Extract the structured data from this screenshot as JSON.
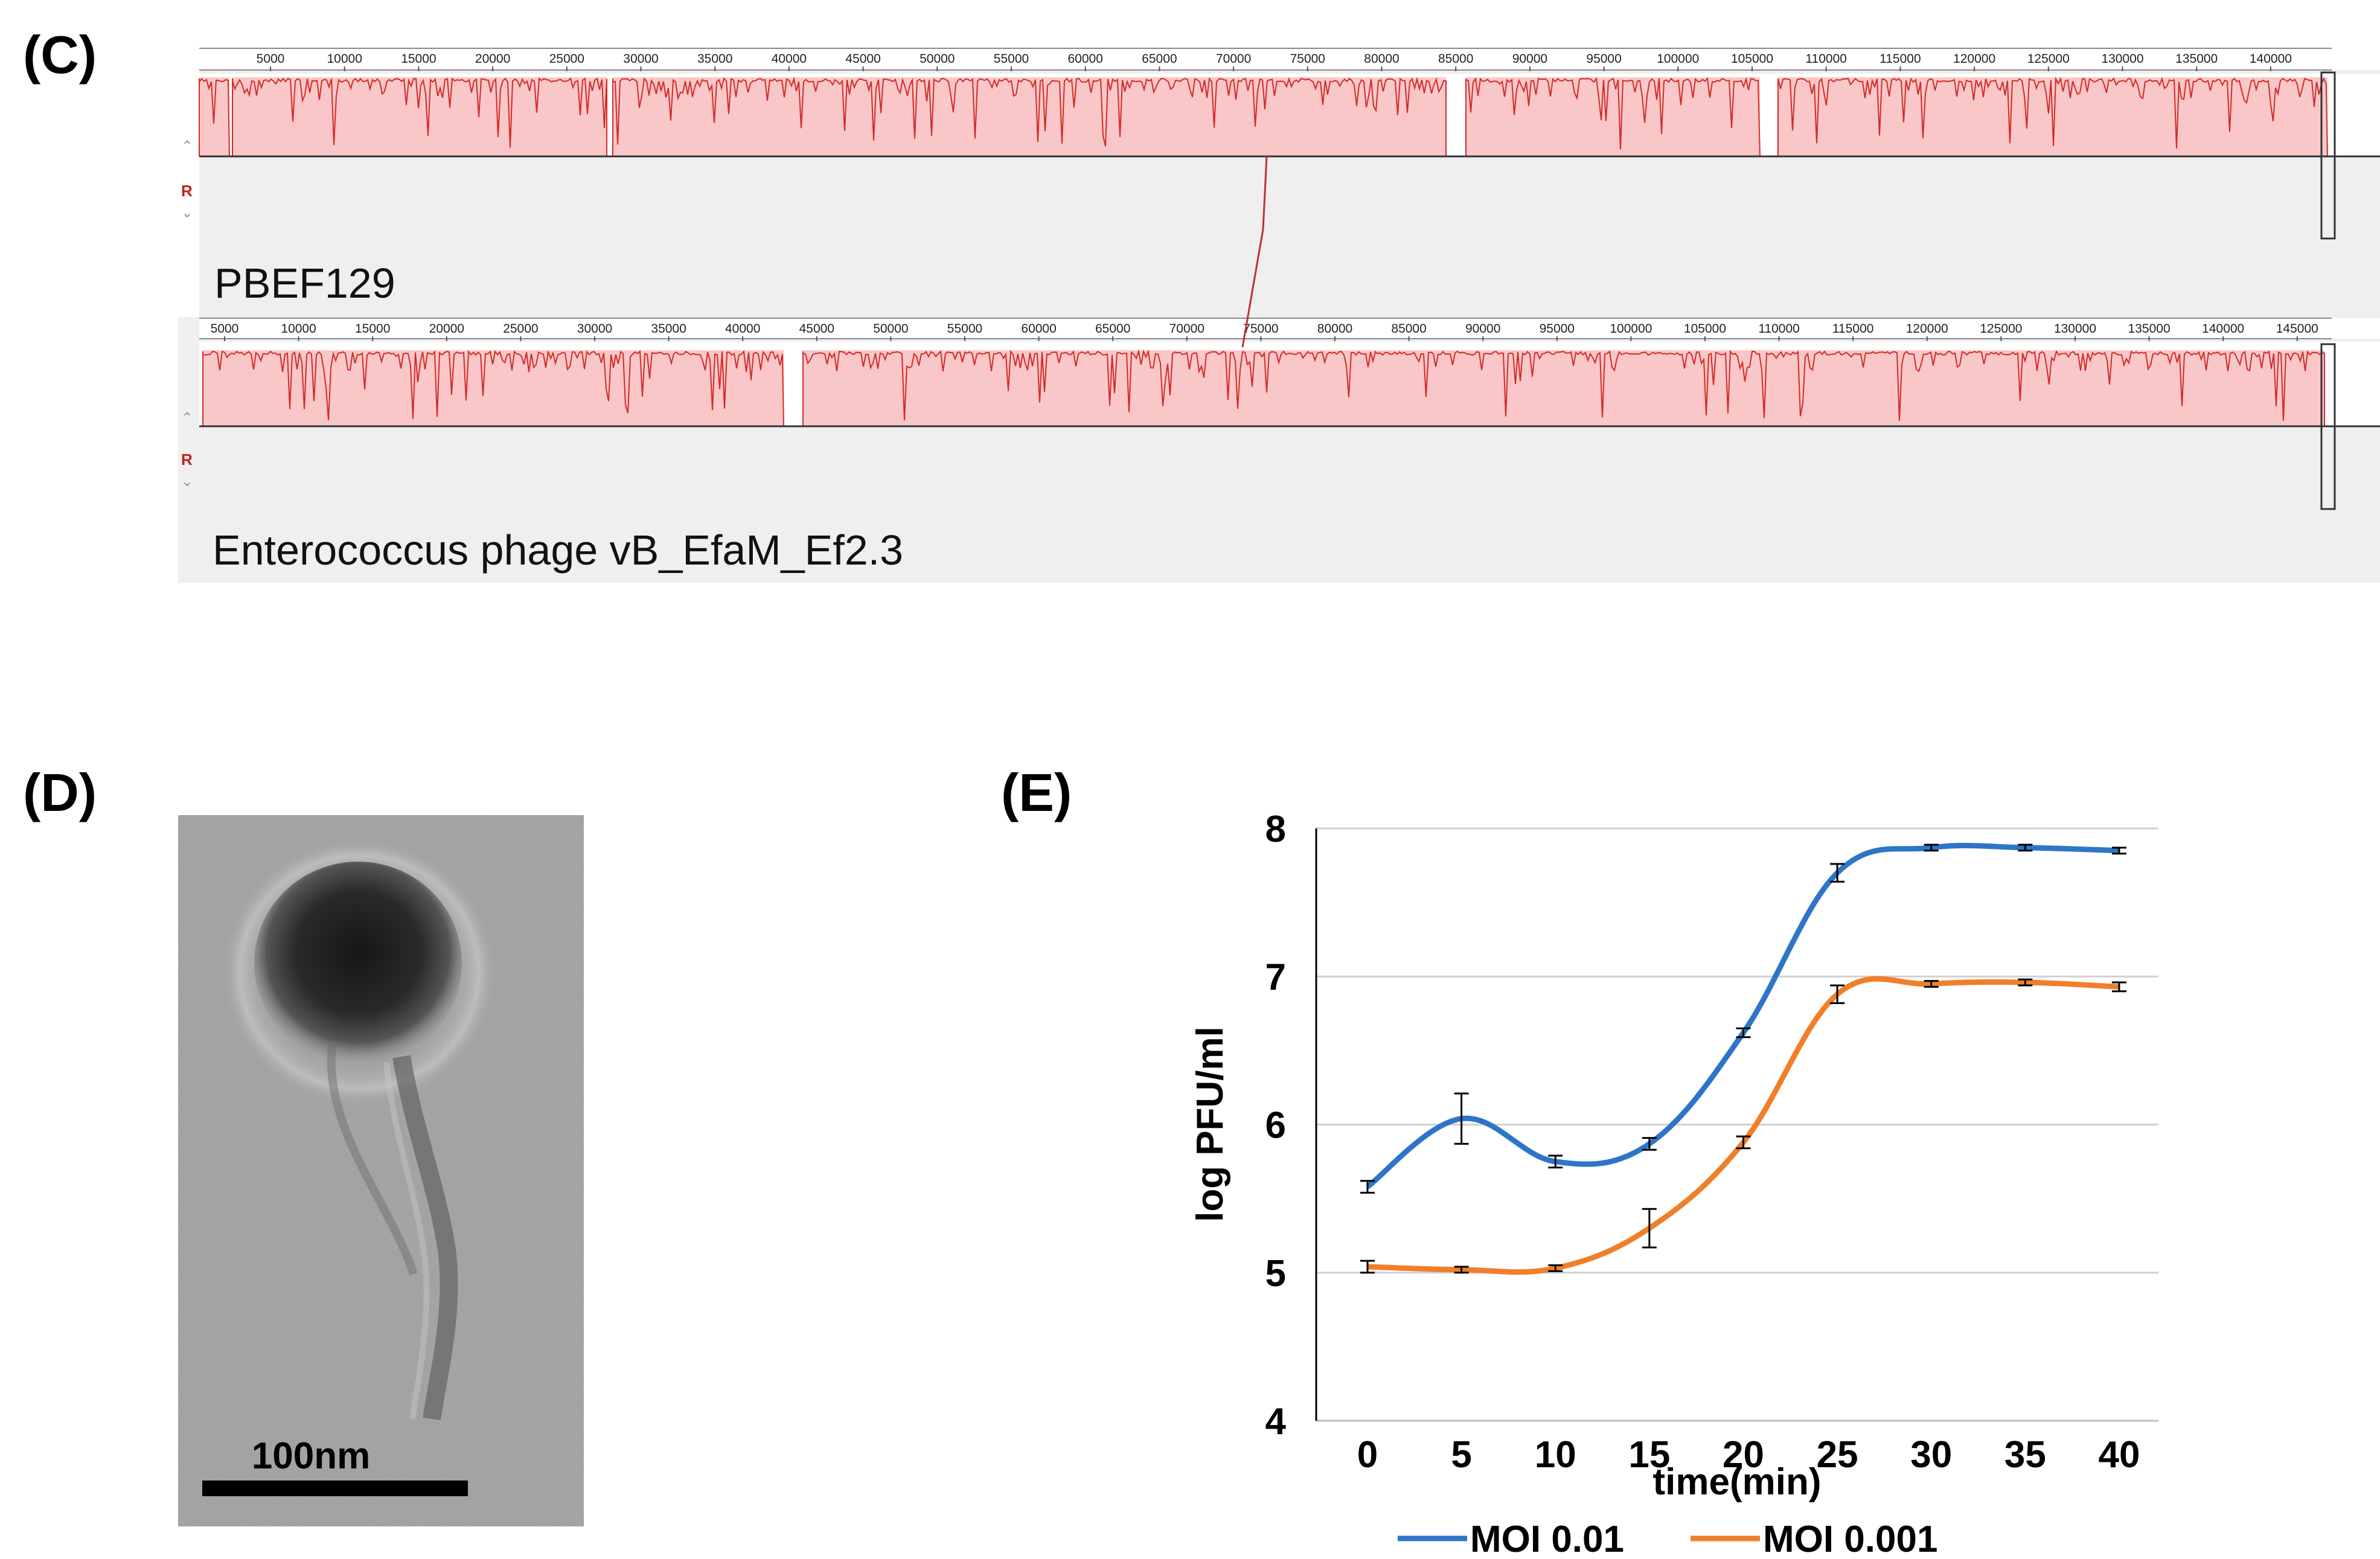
{
  "panels": {
    "c": "(C)",
    "d": "(D)",
    "e": "(E)"
  },
  "alignment": {
    "track1": {
      "name": "PBEF129",
      "ticks": [
        "5000",
        "10000",
        "15000",
        "20000",
        "25000",
        "30000",
        "35000",
        "40000",
        "45000",
        "50000",
        "55000",
        "60000",
        "65000",
        "70000",
        "75000",
        "80000",
        "85000",
        "90000",
        "95000",
        "100000",
        "105000",
        "110000",
        "115000",
        "120000",
        "125000",
        "130000",
        "135000",
        "140000"
      ]
    },
    "track2": {
      "name": "Enterococcus phage vB_EfaM_Ef2.3",
      "ticks": [
        "5000",
        "10000",
        "15000",
        "20000",
        "25000",
        "30000",
        "35000",
        "40000",
        "45000",
        "50000",
        "55000",
        "60000",
        "65000",
        "70000",
        "75000",
        "80000",
        "85000",
        "90000",
        "95000",
        "100000",
        "105000",
        "110000",
        "115000",
        "120000",
        "125000",
        "130000",
        "135000",
        "140000",
        "145000"
      ]
    },
    "strand_marker": "R",
    "colors": {
      "block_fill": "#f9c7c7",
      "block_line": "#d42a2a",
      "track_bg": "#efefef"
    }
  },
  "micrograph": {
    "scale_label": "100nm"
  },
  "chart_data": {
    "type": "line",
    "x": [
      0,
      5,
      10,
      15,
      20,
      25,
      30,
      35,
      40
    ],
    "series": [
      {
        "name": "MOI 0.01",
        "color": "#2e75c8",
        "values": [
          5.58,
          6.04,
          5.75,
          5.87,
          6.62,
          7.7,
          7.87,
          7.87,
          7.85
        ],
        "errors": [
          0.04,
          0.17,
          0.04,
          0.04,
          0.03,
          0.06,
          0.02,
          0.02,
          0.02
        ]
      },
      {
        "name": "MOI 0.001",
        "color": "#f07f2a",
        "values": [
          5.04,
          5.02,
          5.03,
          5.3,
          5.88,
          6.88,
          6.95,
          6.96,
          6.93
        ],
        "errors": [
          0.04,
          0.02,
          0.02,
          0.13,
          0.04,
          0.06,
          0.02,
          0.02,
          0.03
        ]
      }
    ],
    "ylim": [
      4,
      8
    ],
    "yticks": [
      "4",
      "5",
      "6",
      "7",
      "8"
    ],
    "xticks": [
      "0",
      "5",
      "10",
      "15",
      "20",
      "25",
      "30",
      "35",
      "40"
    ],
    "xlabel": "time(min)",
    "ylabel": "log PFU/ml",
    "legend_position": "bottom",
    "grid": true
  }
}
